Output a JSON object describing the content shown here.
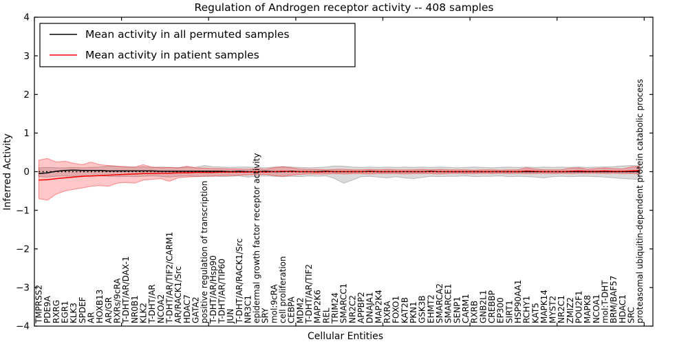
{
  "chart_data": {
    "type": "line",
    "title": "Regulation of Androgen receptor activity -- 408 samples",
    "xlabel": "Cellular Entities",
    "ylabel": "Inferred Activity",
    "ylim": [
      -4,
      4
    ],
    "yticks": [
      "4",
      "3",
      "2",
      "1",
      "0",
      "−1",
      "−2",
      "−3",
      "−4"
    ],
    "ytick_values": [
      4,
      3,
      2,
      1,
      0,
      -1,
      -2,
      -3,
      -4
    ],
    "xlim": [
      0,
      71
    ],
    "x_offset": 0.5,
    "x_major_ticks": [
      0,
      10,
      20,
      30,
      40,
      50,
      60,
      70
    ],
    "grid": false,
    "legend_position": "upper left",
    "background_color": "#ffffff",
    "frame_color": "#000000",
    "categories": [
      "TMPRSS2",
      "PDE9A",
      "RXRG",
      "EGR1",
      "KLK3",
      "SPDEF",
      "AR",
      "HOXB13",
      "AR/GR",
      "RXRs/9cRA",
      "T-DHT/AR/DAX-1",
      "NR0B1",
      "KLK2",
      "T-DHT/AR",
      "NCOA2",
      "T-DHT/AR/TIF2/CARM1",
      "AR/RACK1/Src",
      "HDAC7",
      "GATA2",
      "positive regulation of transcription",
      "T-DHT/AR/Hsp90",
      "T-DHT/AR/TIP60",
      "JUN",
      "T-DHT/AR/RACK1/Src",
      "NR3C1",
      "epidermal growth factor receptor activity",
      "SRY",
      "mol:9cRA",
      "cell proliferation",
      "CEBPA",
      "MDM2",
      "T-DHT/AR/TIF2",
      "MAP2K6",
      "REL",
      "TRIM24",
      "SMARCC1",
      "NR2C2",
      "APPBP2",
      "DNAJA1",
      "MAP2K4",
      "RXRA",
      "FOXO1",
      "KAT2B",
      "PKN1",
      "GSK3B",
      "EHMT2",
      "SMARCA2",
      "SMARCE1",
      "SENP1",
      "CARM1",
      "RXRB",
      "GNB2L1",
      "CREBBP",
      "EP300",
      "SIRT1",
      "HSP90AA1",
      "RCHY1",
      "KAT5",
      "MAPK14",
      "MYST2",
      "NR2C1",
      "ZMIZ2",
      "POU2F1",
      "MAPK8",
      "NCOA1",
      "mol:T-DHT",
      "BRM/BAF57",
      "HDAC1",
      "SRC",
      "proteasomal ubiquitin-dependent protein catabolic process"
    ],
    "series": [
      {
        "name": "Mean activity in all permuted samples",
        "color": "#000000",
        "band_fill": "rgba(0,0,0,0.14)",
        "band_stroke": "rgba(0,0,0,0.22)",
        "values": [
          -0.05,
          -0.03,
          0.01,
          0.03,
          0.04,
          0.03,
          0.03,
          0.03,
          0.02,
          0.02,
          0.02,
          0.02,
          0.02,
          0.02,
          0.01,
          0.01,
          0.01,
          0.01,
          0.01,
          0.01,
          0.01,
          0.01,
          0.0,
          0.01,
          0.0,
          0.0,
          0.01,
          0.0,
          0.0,
          0.01,
          0.0,
          0.0,
          0.0,
          0.01,
          0.0,
          0.0,
          0.0,
          0.0,
          0.01,
          0.0,
          0.0,
          0.0,
          0.0,
          0.0,
          0.0,
          0.01,
          0.0,
          0.0,
          0.0,
          0.0,
          0.0,
          0.0,
          0.0,
          0.0,
          0.0,
          0.0,
          0.0,
          0.0,
          0.0,
          0.0,
          0.0,
          0.0,
          0.0,
          0.0,
          0.0,
          0.0,
          0.0,
          0.0,
          0.0,
          0.0
        ],
        "band_upper": [
          0.1,
          0.11,
          0.1,
          0.1,
          0.11,
          0.1,
          0.11,
          0.12,
          0.15,
          0.14,
          0.12,
          0.11,
          0.13,
          0.11,
          0.12,
          0.11,
          0.1,
          0.12,
          0.11,
          0.16,
          0.13,
          0.12,
          0.11,
          0.12,
          0.12,
          0.11,
          0.1,
          0.12,
          0.13,
          0.12,
          0.11,
          0.1,
          0.11,
          0.12,
          0.15,
          0.14,
          0.12,
          0.11,
          0.12,
          0.11,
          0.12,
          0.11,
          0.12,
          0.11,
          0.12,
          0.11,
          0.12,
          0.11,
          0.1,
          0.11,
          0.12,
          0.11,
          0.1,
          0.11,
          0.12,
          0.11,
          0.12,
          0.11,
          0.12,
          0.11,
          0.12,
          0.11,
          0.12,
          0.11,
          0.12,
          0.12,
          0.13,
          0.15,
          0.16,
          0.15
        ],
        "band_lower": [
          -0.13,
          -0.14,
          -0.12,
          -0.11,
          -0.12,
          -0.11,
          -0.12,
          -0.11,
          -0.12,
          -0.13,
          -0.12,
          -0.13,
          -0.12,
          -0.11,
          -0.12,
          -0.14,
          -0.12,
          -0.11,
          -0.12,
          -0.12,
          -0.11,
          -0.13,
          -0.12,
          -0.11,
          -0.14,
          -0.12,
          -0.11,
          -0.12,
          -0.13,
          -0.12,
          -0.13,
          -0.11,
          -0.12,
          -0.11,
          -0.18,
          -0.3,
          -0.22,
          -0.13,
          -0.12,
          -0.14,
          -0.16,
          -0.13,
          -0.16,
          -0.18,
          -0.15,
          -0.12,
          -0.13,
          -0.12,
          -0.12,
          -0.11,
          -0.13,
          -0.12,
          -0.12,
          -0.11,
          -0.13,
          -0.12,
          -0.13,
          -0.14,
          -0.16,
          -0.13,
          -0.12,
          -0.13,
          -0.12,
          -0.12,
          -0.13,
          -0.14,
          -0.16,
          -0.18,
          -0.19,
          -0.2
        ]
      },
      {
        "name": "Mean activity in patient samples",
        "color": "#ff0000",
        "band_fill": "rgba(255,0,0,0.22)",
        "band_stroke": "rgba(255,0,0,0.40)",
        "values": [
          -0.22,
          -0.21,
          -0.18,
          -0.16,
          -0.14,
          -0.12,
          -0.11,
          -0.1,
          -0.09,
          -0.08,
          -0.07,
          -0.06,
          -0.05,
          -0.05,
          -0.04,
          -0.04,
          -0.03,
          -0.03,
          -0.02,
          -0.02,
          -0.02,
          -0.01,
          -0.01,
          -0.01,
          -0.01,
          0.0,
          -0.01,
          0.0,
          0.01,
          0.0,
          0.0,
          0.0,
          -0.01,
          0.0,
          0.0,
          0.0,
          0.0,
          0.0,
          0.0,
          0.0,
          0.0,
          0.0,
          0.0,
          0.0,
          0.0,
          0.0,
          0.0,
          0.0,
          0.0,
          0.0,
          0.0,
          0.0,
          0.0,
          0.0,
          0.0,
          0.0,
          0.02,
          0.01,
          0.0,
          0.0,
          0.0,
          0.01,
          0.02,
          0.01,
          0.01,
          0.02,
          0.01,
          0.01,
          0.02,
          0.03
        ],
        "band_upper": [
          0.3,
          0.34,
          0.25,
          0.27,
          0.22,
          0.18,
          0.25,
          0.18,
          0.16,
          0.14,
          0.13,
          0.12,
          0.18,
          0.12,
          0.1,
          0.11,
          0.1,
          0.14,
          0.1,
          0.09,
          0.08,
          0.08,
          0.07,
          0.07,
          0.06,
          0.08,
          0.06,
          0.1,
          0.13,
          0.1,
          0.07,
          0.06,
          0.06,
          0.05,
          0.06,
          0.06,
          0.05,
          0.05,
          0.06,
          0.05,
          0.06,
          0.05,
          0.05,
          0.05,
          0.06,
          0.05,
          0.06,
          0.05,
          0.05,
          0.05,
          0.04,
          0.05,
          0.05,
          0.04,
          0.05,
          0.05,
          0.1,
          0.07,
          0.05,
          0.05,
          0.05,
          0.09,
          0.1,
          0.06,
          0.08,
          0.1,
          0.08,
          0.07,
          0.12,
          0.14
        ],
        "band_lower": [
          -0.7,
          -0.74,
          -0.58,
          -0.5,
          -0.46,
          -0.42,
          -0.38,
          -0.36,
          -0.38,
          -0.3,
          -0.28,
          -0.3,
          -0.22,
          -0.2,
          -0.18,
          -0.25,
          -0.16,
          -0.14,
          -0.13,
          -0.12,
          -0.12,
          -0.1,
          -0.1,
          -0.09,
          -0.08,
          -0.08,
          -0.07,
          -0.1,
          -0.12,
          -0.09,
          -0.07,
          -0.06,
          -0.06,
          -0.06,
          -0.05,
          -0.06,
          -0.05,
          -0.05,
          -0.06,
          -0.05,
          -0.05,
          -0.05,
          -0.06,
          -0.05,
          -0.05,
          -0.05,
          -0.06,
          -0.05,
          -0.04,
          -0.05,
          -0.05,
          -0.04,
          -0.05,
          -0.04,
          -0.05,
          -0.04,
          -0.05,
          -0.05,
          -0.04,
          -0.05,
          -0.04,
          -0.05,
          -0.04,
          -0.04,
          -0.04,
          -0.05,
          -0.04,
          -0.05,
          -0.05,
          -0.06
        ]
      }
    ],
    "zero_line": {
      "value": 0,
      "style": "dotted",
      "color": "#000000"
    }
  }
}
